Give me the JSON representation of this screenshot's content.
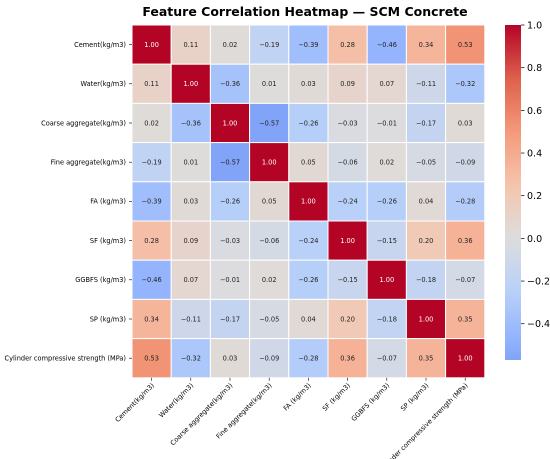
{
  "chart_data": {
    "type": "heatmap",
    "title": "Feature Correlation Heatmap — SCM Concrete",
    "labels": [
      "Cement(kg/m3)",
      "Water(kg/m3)",
      "Coarse aggregate(kg/m3)",
      "Fine aggregate(kg/m3)",
      "FA (kg/m3)",
      "SF (kg/m3)",
      "GGBFS (kg/m3)",
      "SP (kg/m3)",
      "Cylinder compressive strength (MPa)"
    ],
    "matrix": [
      [
        "1.00",
        "0.11",
        "0.02",
        "−0.19",
        "−0.39",
        "0.28",
        "−0.46",
        "0.34",
        "0.53"
      ],
      [
        "0.11",
        "1.00",
        "−0.36",
        "0.01",
        "0.03",
        "0.09",
        "0.07",
        "−0.11",
        "−0.32"
      ],
      [
        "0.02",
        "−0.36",
        "1.00",
        "−0.57",
        "−0.26",
        "−0.03",
        "−0.01",
        "−0.17",
        "0.03"
      ],
      [
        "−0.19",
        "0.01",
        "−0.57",
        "1.00",
        "0.05",
        "−0.06",
        "0.02",
        "−0.05",
        "−0.09"
      ],
      [
        "−0.39",
        "0.03",
        "−0.26",
        "0.05",
        "1.00",
        "−0.24",
        "−0.26",
        "0.04",
        "−0.28"
      ],
      [
        "0.28",
        "0.09",
        "−0.03",
        "−0.06",
        "−0.24",
        "1.00",
        "−0.15",
        "0.20",
        "0.36"
      ],
      [
        "−0.46",
        "0.07",
        "−0.01",
        "0.02",
        "−0.26",
        "−0.15",
        "1.00",
        "−0.18",
        "−0.07"
      ],
      [
        "0.34",
        "−0.11",
        "−0.17",
        "−0.05",
        "0.04",
        "0.20",
        "−0.18",
        "1.00",
        "0.35"
      ],
      [
        "0.53",
        "−0.32",
        "0.03",
        "−0.09",
        "−0.28",
        "0.36",
        "−0.07",
        "0.35",
        "1.00"
      ]
    ],
    "colormap": "coolwarm",
    "center": 0,
    "vmin": -0.57,
    "vmax": 1.0,
    "colorbar_ticks": [
      "−0.4",
      "−0.2",
      "0.0",
      "0.2",
      "0.4",
      "0.6",
      "0.8",
      "1.0"
    ],
    "cell_border_color": "#ffffff"
  }
}
